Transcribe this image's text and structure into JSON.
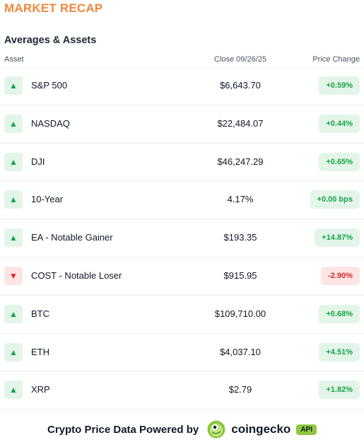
{
  "title": "MARKET RECAP",
  "subtitle": "Averages & Assets",
  "headers": {
    "asset": "Asset",
    "close": "Close 09/26/25",
    "change": "Price Change"
  },
  "rows": [
    {
      "direction": "up",
      "asset": "S&P 500",
      "close": "$6,643.70",
      "change": "+0.59%"
    },
    {
      "direction": "up",
      "asset": "NASDAQ",
      "close": "$22,484.07",
      "change": "+0.44%"
    },
    {
      "direction": "up",
      "asset": "DJI",
      "close": "$46,247.29",
      "change": "+0.65%"
    },
    {
      "direction": "up",
      "asset": "10-Year",
      "close": "4.17%",
      "change": "+0.00 bps"
    },
    {
      "direction": "up",
      "asset": "EA - Notable Gainer",
      "close": "$193.35",
      "change": "+14.87%"
    },
    {
      "direction": "down",
      "asset": "COST - Notable Loser",
      "close": "$915.95",
      "change": "-2.90%"
    },
    {
      "direction": "up",
      "asset": "BTC",
      "close": "$109,710.00",
      "change": "+0.68%"
    },
    {
      "direction": "up",
      "asset": "ETH",
      "close": "$4,037.10",
      "change": "+4.51%"
    },
    {
      "direction": "up",
      "asset": "XRP",
      "close": "$2.79",
      "change": "+1.82%"
    }
  ],
  "footer": {
    "text": "Crypto Price Data Powered by",
    "brand": "coingecko",
    "badge": "API"
  },
  "colors": {
    "accent": "#f0883c",
    "positive": "#16a34a",
    "negative": "#dc2626",
    "brand_green": "#8dc63f"
  }
}
